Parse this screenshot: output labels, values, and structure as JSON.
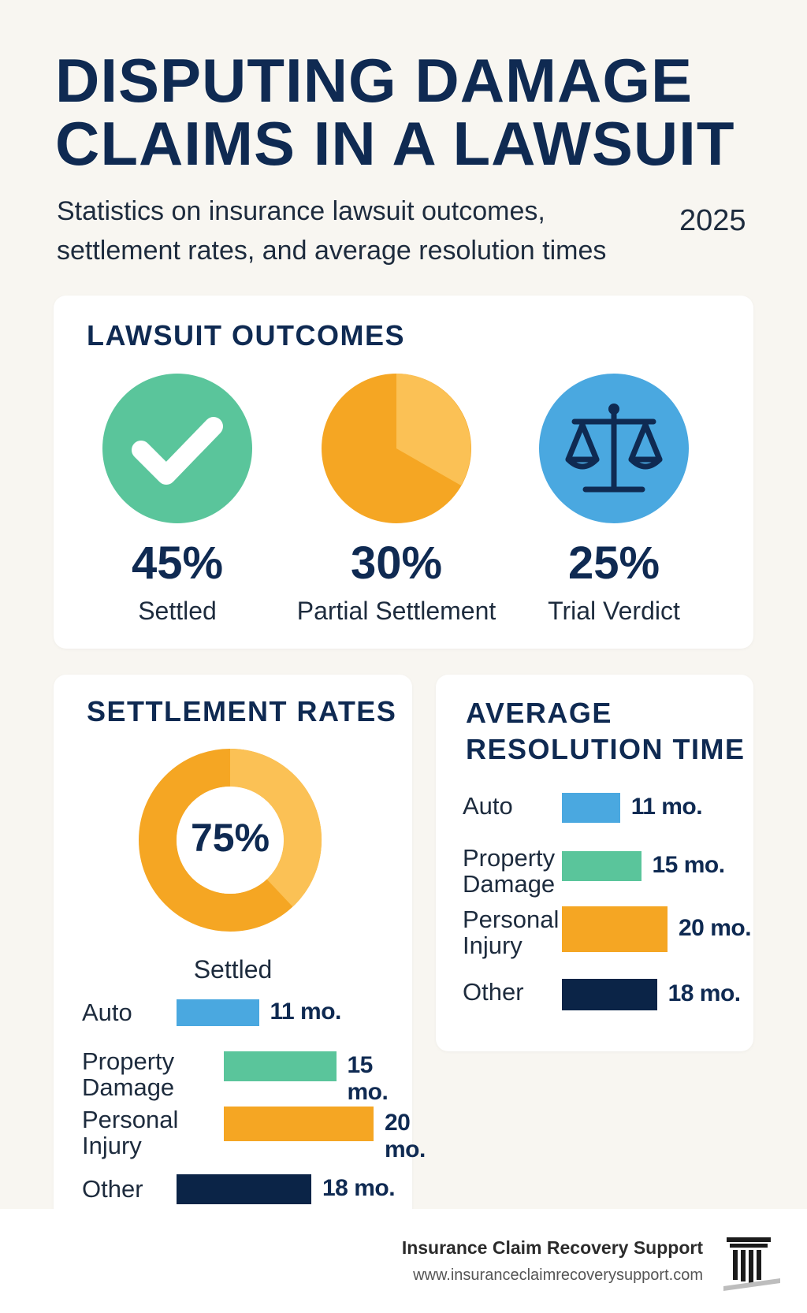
{
  "header": {
    "title_line1": "DISPUTING DAMAGE",
    "title_line2": "CLAIMS IN A LAWSUIT",
    "subtitle_line1": "Statistics on insurance lawsuit outcomes,",
    "subtitle_line2": "settlement rates, and average resolution times",
    "year": "2025"
  },
  "outcomes": {
    "title": "LAWSUIT OUTCOMES",
    "items": [
      {
        "pct": "45%",
        "label": "Settled",
        "icon": "checkmark-icon",
        "color": "#5ac59b"
      },
      {
        "pct": "30%",
        "label": "Partial Settlement",
        "icon": "pie-icon",
        "color": "#f5a623"
      },
      {
        "pct": "25%",
        "label": "Trial Verdict",
        "icon": "scales-icon",
        "color": "#4aa8e0"
      }
    ]
  },
  "settlement": {
    "title": "SETTLEMENT RATES",
    "donut_value": "75%",
    "donut_label": "Settled"
  },
  "resolution": {
    "title_line1": "AVERAGE",
    "title_line2": "RESOLUTION TIME"
  },
  "colors": {
    "navy": "#0f2a52",
    "blue": "#4aa8e0",
    "green": "#5ac59b",
    "orange": "#f5a623",
    "light_orange": "#fbc155",
    "dark": "#0b2447"
  },
  "chart_data": [
    {
      "type": "pie",
      "title": "LAWSUIT OUTCOMES",
      "categories": [
        "Settled",
        "Partial Settlement",
        "Trial Verdict"
      ],
      "values": [
        45,
        30,
        25
      ]
    },
    {
      "type": "pie",
      "title": "SETTLEMENT RATES",
      "categories": [
        "Settled"
      ],
      "values": [
        75
      ]
    },
    {
      "type": "bar",
      "orientation": "horizontal",
      "categories": [
        "Auto",
        "Property Damage",
        "Personal Injury",
        "Other"
      ],
      "label_lines": [
        [
          "Auto"
        ],
        [
          "Property",
          "Damage"
        ],
        [
          "Personal",
          "Injury"
        ],
        [
          "Other"
        ]
      ],
      "values": [
        11,
        15,
        20,
        18
      ],
      "value_labels": [
        "11 mo.",
        "15 mo.",
        "20 mo.",
        "18 mo."
      ],
      "colors": [
        "#4aa8e0",
        "#5ac59b",
        "#f5a623",
        "#0b2447"
      ]
    },
    {
      "type": "bar",
      "orientation": "horizontal",
      "title": "AVERAGE RESOLUTION TIME",
      "categories": [
        "Auto",
        "Property Damage",
        "Personal Injury",
        "Other"
      ],
      "label_lines": [
        [
          "Auto"
        ],
        [
          "Property",
          "Damage"
        ],
        [
          "Personal",
          "Injury"
        ],
        [
          "Other"
        ]
      ],
      "values": [
        11,
        15,
        20,
        18
      ],
      "value_labels": [
        "11 mo.",
        "15 mo.",
        "20 mo.",
        "18 mo."
      ],
      "colors": [
        "#4aa8e0",
        "#5ac59b",
        "#f5a623",
        "#0b2447"
      ]
    }
  ],
  "footer": {
    "brand": "Insurance Claim Recovery Support",
    "url": "www.insuranceclaimrecoverysupport.com"
  }
}
